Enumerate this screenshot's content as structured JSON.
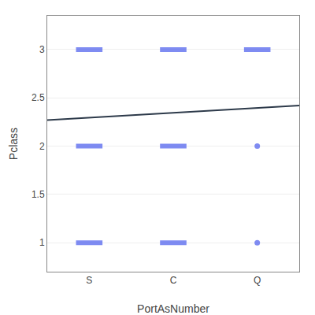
{
  "chart_data": {
    "type": "scatter",
    "xlabel": "PortAsNumber",
    "ylabel": "Pclass",
    "xlim": [
      -0.5,
      2.5
    ],
    "xticks": [
      {
        "value": 0,
        "label": "S"
      },
      {
        "value": 1,
        "label": "C"
      },
      {
        "value": 2,
        "label": "Q"
      }
    ],
    "ylim": [
      0.7,
      3.35
    ],
    "yticks": [
      1,
      1.5,
      2,
      2.5,
      3
    ],
    "grid": true,
    "series": [
      {
        "type": "scatter",
        "marker": "pill",
        "color": "#5566ee",
        "x": [
          0,
          0,
          0,
          1,
          1,
          1,
          2
        ],
        "values": [
          1,
          2,
          3,
          1,
          2,
          3,
          3
        ]
      },
      {
        "type": "scatter",
        "marker": "circle",
        "color": "#5566ee",
        "x": [
          2,
          2
        ],
        "values": [
          1,
          2
        ]
      },
      {
        "type": "line",
        "color": "#2d3a4a",
        "x": [
          -0.5,
          2.5
        ],
        "values": [
          2.27,
          2.42
        ]
      }
    ]
  }
}
